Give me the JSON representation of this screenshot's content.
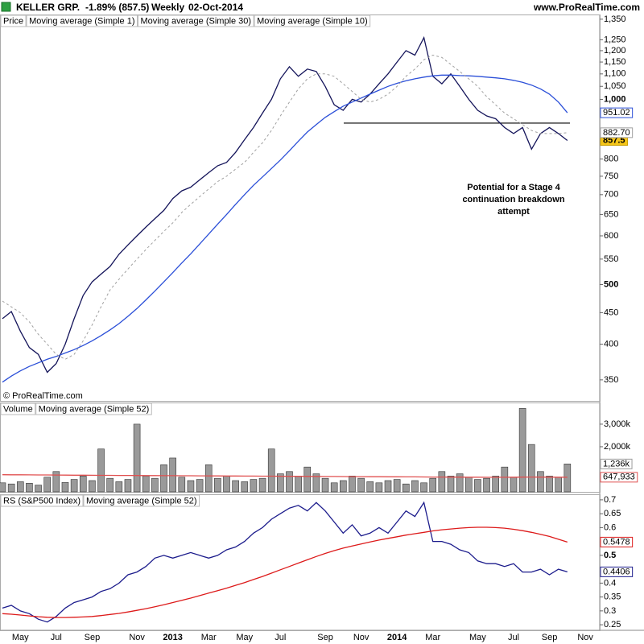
{
  "header": {
    "symbol": "KELLER GRP.",
    "change": "-1.89% (857.5)",
    "period": "Weekly",
    "date": "02-Oct-2014",
    "site": "www.ProRealTime.com",
    "copyright": "© ProRealTime.com"
  },
  "chart_data": [
    {
      "type": "line",
      "log": true,
      "legend_title": "Price",
      "categories": [
        null,
        null,
        "May",
        null,
        null,
        null,
        "Jul",
        null,
        null,
        null,
        "Sep",
        null,
        null,
        null,
        null,
        "Nov",
        null,
        null,
        null,
        "2013",
        null,
        null,
        null,
        "Mar",
        null,
        null,
        null,
        "May",
        null,
        null,
        null,
        "Jul",
        null,
        null,
        null,
        null,
        "Sep",
        null,
        null,
        null,
        "Nov",
        null,
        null,
        null,
        "2014",
        null,
        null,
        null,
        "Mar",
        null,
        null,
        null,
        null,
        "May",
        null,
        null,
        null,
        "Jul",
        null,
        null,
        null,
        "Sep",
        null,
        null,
        null,
        "Nov"
      ],
      "ylim": [
        323.5,
        1374
      ],
      "yticks": [
        {
          "value": 1350,
          "label": "1,350"
        },
        {
          "value": 1250,
          "label": "1,250"
        },
        {
          "value": 1200,
          "label": "1,200"
        },
        {
          "value": 1150,
          "label": "1,150"
        },
        {
          "value": 1100,
          "label": "1,100"
        },
        {
          "value": 1050,
          "label": "1,050"
        },
        {
          "value": 1000,
          "label": "1,000"
        },
        800,
        750,
        700,
        650,
        600,
        550,
        500,
        450,
        400,
        350
      ],
      "series": [
        {
          "name": "Moving average (Simple 1)",
          "color": "#14145a",
          "last_label": "857.5",
          "label_bg": "#f5c518",
          "values": [
            440,
            452,
            420,
            395,
            385,
            360,
            372,
            400,
            440,
            480,
            505,
            520,
            535,
            560,
            580,
            600,
            620,
            640,
            660,
            690,
            710,
            720,
            740,
            760,
            780,
            790,
            820,
            860,
            900,
            950,
            1000,
            1080,
            1130,
            1090,
            1120,
            1110,
            1050,
            980,
            960,
            1000,
            990,
            1020,
            1060,
            1100,
            1150,
            1200,
            1180,
            1260,
            1090,
            1060,
            1100,
            1050,
            1000,
            960,
            940,
            930,
            900,
            880,
            900,
            830,
            880,
            900,
            880,
            857.5,
            null,
            null
          ]
        },
        {
          "name": "Moving average (Simple 30)",
          "color": "#2b4fd8",
          "last_label": "951.02",
          "values": [
            347,
            355,
            362,
            368,
            373,
            378,
            382,
            387,
            392,
            398,
            405,
            413,
            422,
            432,
            444,
            457,
            472,
            488,
            505,
            523,
            542,
            561,
            582,
            604,
            627,
            650,
            675,
            700,
            725,
            748,
            772,
            797,
            825,
            855,
            885,
            910,
            935,
            955,
            975,
            990,
            1005,
            1020,
            1035,
            1050,
            1062,
            1072,
            1080,
            1087,
            1092,
            1095,
            1095,
            1093,
            1092,
            1090,
            1087,
            1084,
            1080,
            1074,
            1066,
            1055,
            1040,
            1020,
            990,
            951.02,
            null,
            null
          ]
        },
        {
          "name": "Moving average (Simple 10)",
          "color": "#a0a0a0",
          "dash": true,
          "last_label": "882.70",
          "values": [
            470,
            460,
            450,
            435,
            415,
            400,
            385,
            378,
            385,
            405,
            430,
            460,
            490,
            510,
            530,
            550,
            570,
            590,
            610,
            630,
            655,
            675,
            695,
            715,
            735,
            750,
            770,
            790,
            820,
            850,
            890,
            940,
            990,
            1040,
            1080,
            1100,
            1100,
            1090,
            1060,
            1030,
            1000,
            990,
            1000,
            1020,
            1050,
            1090,
            1120,
            1160,
            1180,
            1170,
            1140,
            1110,
            1080,
            1050,
            1010,
            980,
            950,
            930,
            910,
            890,
            880,
            880,
            880,
            882.7,
            null,
            null
          ]
        }
      ],
      "hline": {
        "value": 915,
        "color": "#000000"
      },
      "annotation": [
        "Potential for a Stage 4",
        "continuation breakdown",
        "attempt"
      ]
    },
    {
      "type": "bar",
      "log": false,
      "ylim": [
        0,
        3960000
      ],
      "yticks": [
        {
          "value": 3000000,
          "label": "3,000k"
        },
        {
          "value": 2000000,
          "label": "2,000k"
        }
      ],
      "series": [
        {
          "name": "Volume",
          "type": "bar",
          "color": "#9a9a9a",
          "last_label": "1,236k",
          "values": [
            400000,
            350000,
            450000,
            380000,
            300000,
            650000,
            900000,
            420000,
            550000,
            700000,
            500000,
            1900000,
            600000,
            450000,
            550000,
            3000000,
            700000,
            600000,
            1200000,
            1500000,
            650000,
            500000,
            550000,
            1200000,
            600000,
            700000,
            500000,
            450000,
            550000,
            600000,
            1900000,
            800000,
            900000,
            700000,
            1100000,
            800000,
            600000,
            400000,
            500000,
            700000,
            600000,
            450000,
            400000,
            500000,
            550000,
            350000,
            500000,
            400000,
            600000,
            900000,
            700000,
            800000,
            650000,
            550000,
            600000,
            700000,
            1100000,
            650000,
            3700000,
            2100000,
            900000,
            700000,
            650000,
            1236000,
            null,
            null
          ]
        },
        {
          "name": "Moving average (Simple 52)",
          "type": "line",
          "color": "#e05050",
          "last_label": "647,933",
          "values": [
            760000,
            758000,
            755000,
            752000,
            750000,
            748000,
            745000,
            742000,
            740000,
            738000,
            735000,
            733000,
            730000,
            728000,
            726000,
            724000,
            722000,
            720000,
            718000,
            716000,
            714000,
            712000,
            710000,
            708000,
            706000,
            704000,
            702000,
            700000,
            698000,
            696000,
            694000,
            692000,
            690000,
            688000,
            686000,
            684000,
            682000,
            680000,
            678000,
            676000,
            674000,
            672000,
            670000,
            668000,
            666000,
            664000,
            662000,
            660000,
            658000,
            656000,
            654000,
            652000,
            650000,
            648000,
            646000,
            645000,
            646000,
            648000,
            652000,
            655000,
            654000,
            652000,
            650000,
            647933,
            null,
            null
          ]
        }
      ]
    },
    {
      "type": "line",
      "log": false,
      "ylim": [
        0.23,
        0.72
      ],
      "yticks": [
        0.7,
        0.65,
        0.6,
        0.5,
        0.4,
        0.35,
        0.3,
        0.25
      ],
      "series": [
        {
          "name": "RS (S&P500 Index)",
          "color": "#1c1c8c",
          "last_label": "0.4406",
          "values": [
            0.31,
            0.32,
            0.3,
            0.29,
            0.27,
            0.26,
            0.28,
            0.31,
            0.33,
            0.34,
            0.35,
            0.37,
            0.38,
            0.4,
            0.43,
            0.44,
            0.46,
            0.49,
            0.5,
            0.49,
            0.5,
            0.51,
            0.5,
            0.49,
            0.5,
            0.52,
            0.53,
            0.55,
            0.58,
            0.6,
            0.63,
            0.65,
            0.67,
            0.68,
            0.66,
            0.69,
            0.66,
            0.62,
            0.58,
            0.61,
            0.57,
            0.58,
            0.6,
            0.58,
            0.62,
            0.66,
            0.64,
            0.69,
            0.55,
            0.55,
            0.54,
            0.52,
            0.51,
            0.48,
            0.47,
            0.47,
            0.46,
            0.47,
            0.44,
            0.44,
            0.45,
            0.43,
            0.45,
            0.4406,
            null,
            null
          ]
        },
        {
          "name": "Moving average (Simple 52)",
          "color": "#dd1a1a",
          "last_label": "0.5478",
          "values": [
            0.29,
            0.288,
            0.285,
            0.282,
            0.279,
            0.277,
            0.276,
            0.276,
            0.277,
            0.278,
            0.28,
            0.283,
            0.287,
            0.291,
            0.296,
            0.302,
            0.308,
            0.315,
            0.322,
            0.33,
            0.338,
            0.346,
            0.355,
            0.364,
            0.373,
            0.382,
            0.392,
            0.402,
            0.413,
            0.424,
            0.436,
            0.448,
            0.46,
            0.472,
            0.484,
            0.496,
            0.507,
            0.517,
            0.526,
            0.534,
            0.541,
            0.548,
            0.555,
            0.561,
            0.567,
            0.573,
            0.578,
            0.583,
            0.588,
            0.592,
            0.595,
            0.598,
            0.6,
            0.601,
            0.601,
            0.6,
            0.598,
            0.594,
            0.589,
            0.583,
            0.576,
            0.568,
            0.558,
            0.5478,
            null,
            null
          ]
        }
      ]
    }
  ]
}
